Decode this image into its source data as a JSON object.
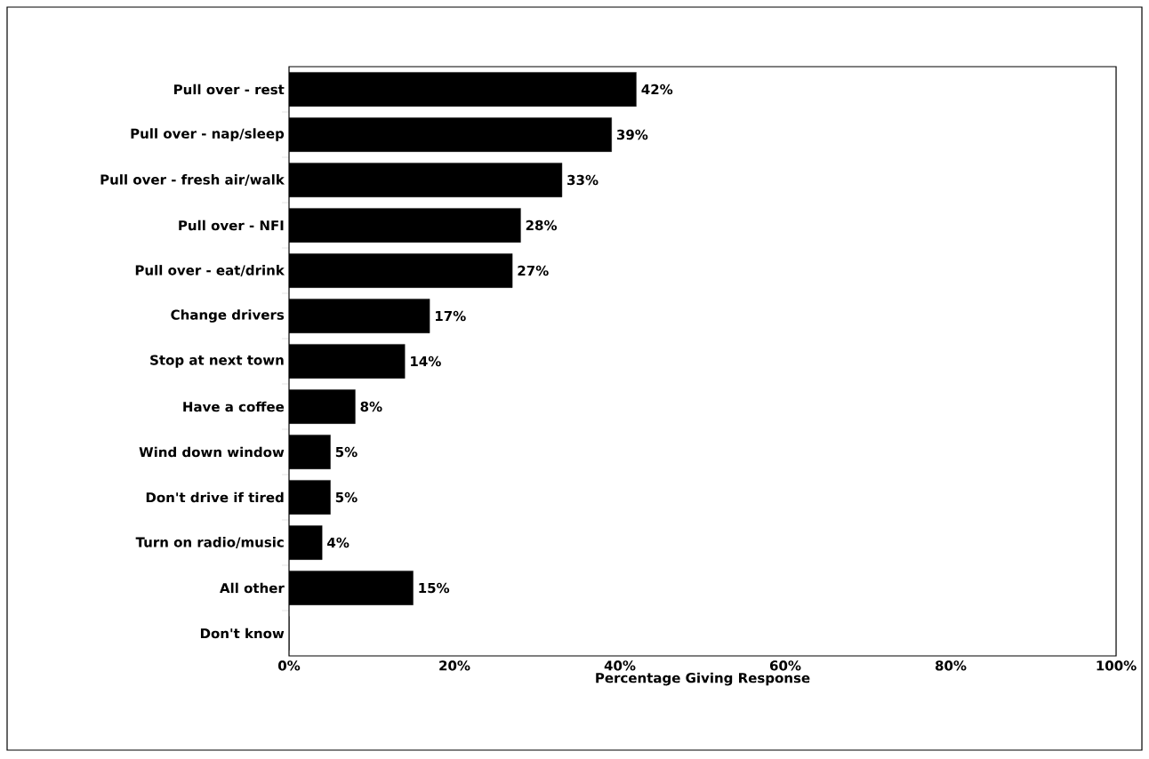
{
  "chart_data": {
    "type": "bar",
    "orientation": "horizontal",
    "xlabel": "Percentage Giving Response",
    "categories": [
      "Pull over - rest",
      "Pull over - nap/sleep",
      "Pull over - fresh air/walk",
      "Pull over - NFI",
      "Pull over - eat/drink",
      "Change drivers",
      "Stop at next town",
      "Have a coffee",
      "Wind down window",
      "Don't drive if tired",
      "Turn on radio/music",
      "All other",
      "Don't know"
    ],
    "values": [
      42,
      39,
      33,
      28,
      27,
      17,
      14,
      8,
      5,
      5,
      4,
      15,
      0
    ],
    "value_labels": [
      "42%",
      "39%",
      "33%",
      "28%",
      "27%",
      "17%",
      "14%",
      "8%",
      "5%",
      "5%",
      "4%",
      "15%",
      null
    ],
    "color": "#000000",
    "xlim": [
      0,
      100
    ],
    "xticks": [
      {
        "value": 0,
        "label": "0%"
      },
      {
        "value": 20,
        "label": "20%"
      },
      {
        "value": 40,
        "label": "40%"
      },
      {
        "value": 60,
        "label": "60%"
      },
      {
        "value": 80,
        "label": "80%"
      },
      {
        "value": 100,
        "label": "100%"
      }
    ],
    "grid": false
  }
}
